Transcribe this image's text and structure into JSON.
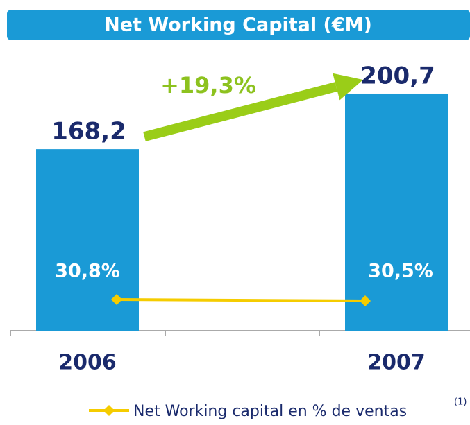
{
  "chart_data": {
    "type": "bar",
    "title": "Net Working Capital (€M)",
    "categories": [
      "2006",
      "2007"
    ],
    "series": [
      {
        "name": "Net Working Capital (€M)",
        "type": "bar",
        "color": "#1a9ad6",
        "values": [
          168.2,
          200.7
        ],
        "value_labels": [
          "168,2",
          "200,7"
        ]
      },
      {
        "name": "Net Working capital en % de ventas",
        "type": "line",
        "axis": "y2",
        "color": "#f5cc00",
        "values": [
          30.8,
          30.5
        ],
        "value_labels": [
          "30,8%",
          "30,5%"
        ]
      }
    ],
    "ylim": [
      62,
      223
    ],
    "y2lim": [
      24,
      84
    ],
    "annotation": "+19,3%",
    "legend_note": "(1)",
    "legend": "bottom"
  }
}
